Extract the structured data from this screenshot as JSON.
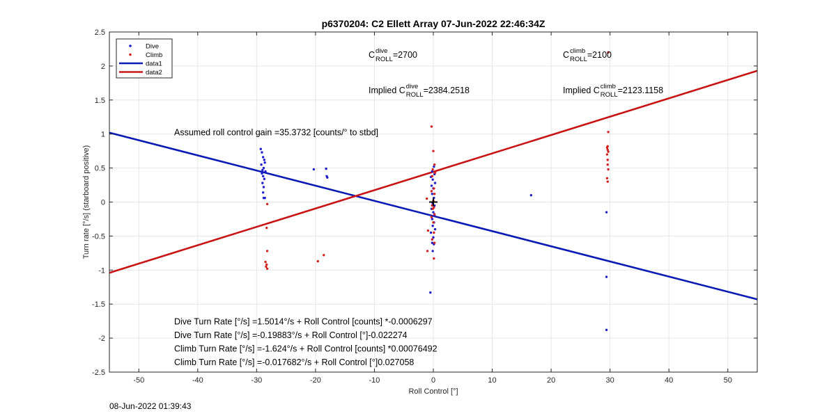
{
  "chart_data": {
    "type": "scatter",
    "title": "p6370204: C2 Ellett Array 07-Jun-2022 22:46:34Z",
    "xlabel": "Roll Control [°]",
    "ylabel": "Turn rate [°/s] (starboard positive)",
    "xlim": [
      -55,
      55
    ],
    "ylim": [
      -2.5,
      2.5
    ],
    "xticks": [
      -50,
      -40,
      -30,
      -20,
      -10,
      0,
      10,
      20,
      30,
      40,
      50
    ],
    "yticks": [
      -2.5,
      -2,
      -1.5,
      -1,
      -0.5,
      0,
      0.5,
      1,
      1.5,
      2,
      2.5
    ],
    "xtick_labels": [
      "-50",
      "-40",
      "-30",
      "-20",
      "-10",
      "0",
      "10",
      "20",
      "30",
      "40",
      "50"
    ],
    "ytick_labels": [
      "-2.5",
      "-2",
      "-1.5",
      "-1",
      "-0.5",
      "0",
      "0.5",
      "1",
      "1.5",
      "2",
      "2.5"
    ],
    "grid": true,
    "legend_position": "top-left",
    "colors": {
      "dive": "#1f1fcc",
      "climb": "#d41f1f",
      "line_dive": "#0a1ab4",
      "line_climb": "#c81414"
    },
    "series": [
      {
        "name": "Dive",
        "kind": "points",
        "points": [
          [
            -29.3,
            0.78
          ],
          [
            -29.1,
            0.73
          ],
          [
            -28.9,
            0.66
          ],
          [
            -28.7,
            0.62
          ],
          [
            -28.6,
            0.58
          ],
          [
            -29.2,
            0.55
          ],
          [
            -28.8,
            0.5
          ],
          [
            -29.0,
            0.47
          ],
          [
            -28.5,
            0.45
          ],
          [
            -29.1,
            0.42
          ],
          [
            -28.9,
            0.38
          ],
          [
            -28.7,
            0.34
          ],
          [
            -29.0,
            0.28
          ],
          [
            -28.8,
            0.22
          ],
          [
            -28.9,
            0.14
          ],
          [
            -28.8,
            0.06
          ],
          [
            -28.6,
            0.06
          ],
          [
            -20.3,
            0.48
          ],
          [
            -18.2,
            0.49
          ],
          [
            -18.1,
            0.38
          ],
          [
            -18.0,
            0.36
          ],
          [
            0.1,
            0.52
          ],
          [
            -0.2,
            0.45
          ],
          [
            0.2,
            0.41
          ],
          [
            -0.4,
            0.37
          ],
          [
            -0.1,
            0.33
          ],
          [
            0.3,
            0.28
          ],
          [
            -0.3,
            0.24
          ],
          [
            0.0,
            0.2
          ],
          [
            -0.2,
            0.12
          ],
          [
            0.1,
            0.06
          ],
          [
            -0.1,
            -0.02
          ],
          [
            0.2,
            -0.05
          ],
          [
            -0.3,
            -0.1
          ],
          [
            0.0,
            -0.15
          ],
          [
            0.2,
            -0.2
          ],
          [
            -0.2,
            -0.25
          ],
          [
            0.1,
            -0.3
          ],
          [
            -0.1,
            -0.35
          ],
          [
            0.3,
            -0.4
          ],
          [
            -0.4,
            -0.45
          ],
          [
            0.0,
            -0.52
          ],
          [
            -0.2,
            -0.6
          ],
          [
            0.1,
            -0.62
          ],
          [
            -0.1,
            -0.72
          ],
          [
            -0.5,
            -1.33
          ],
          [
            16.6,
            0.1
          ],
          [
            29.4,
            -0.15
          ],
          [
            29.4,
            -1.1
          ],
          [
            29.4,
            -1.88
          ]
        ]
      },
      {
        "name": "Climb",
        "kind": "points",
        "points": [
          [
            -28.2,
            -0.03
          ],
          [
            -28.3,
            -0.38
          ],
          [
            -28.2,
            -0.72
          ],
          [
            -28.5,
            -0.88
          ],
          [
            -28.3,
            -0.92
          ],
          [
            -28.4,
            -0.95
          ],
          [
            -28.2,
            -0.98
          ],
          [
            -19.6,
            -0.87
          ],
          [
            -18.6,
            -0.78
          ],
          [
            -0.3,
            1.11
          ],
          [
            0.0,
            0.75
          ],
          [
            0.2,
            0.55
          ],
          [
            -0.1,
            0.48
          ],
          [
            0.3,
            0.43
          ],
          [
            -0.2,
            0.38
          ],
          [
            0.1,
            0.2
          ],
          [
            -0.3,
            0.16
          ],
          [
            0.2,
            0.12
          ],
          [
            -1.1,
            0.05
          ],
          [
            0.0,
            0.02
          ],
          [
            -0.2,
            -0.05
          ],
          [
            0.1,
            -0.08
          ],
          [
            -0.1,
            -0.1
          ],
          [
            0.2,
            -0.18
          ],
          [
            -0.3,
            -0.22
          ],
          [
            0.0,
            -0.3
          ],
          [
            -0.9,
            -0.42
          ],
          [
            0.1,
            -0.45
          ],
          [
            -0.2,
            -0.55
          ],
          [
            0.2,
            -0.6
          ],
          [
            -1.0,
            -0.72
          ],
          [
            0.1,
            -0.83
          ],
          [
            29.7,
            2.2
          ],
          [
            29.7,
            1.03
          ],
          [
            29.6,
            0.82
          ],
          [
            29.5,
            0.8
          ],
          [
            29.6,
            0.77
          ],
          [
            29.7,
            0.74
          ],
          [
            29.5,
            0.7
          ],
          [
            29.6,
            0.62
          ],
          [
            29.6,
            0.55
          ],
          [
            29.7,
            0.48
          ],
          [
            29.5,
            0.35
          ],
          [
            29.6,
            0.3
          ]
        ]
      },
      {
        "name": "data1",
        "kind": "line",
        "points": [
          [
            -55,
            1.02
          ],
          [
            55,
            -1.43
          ]
        ]
      },
      {
        "name": "data2",
        "kind": "line",
        "points": [
          [
            -55,
            -1.04
          ],
          [
            55,
            1.93
          ]
        ]
      }
    ],
    "marker": {
      "symbol": "+",
      "x": 0,
      "y": 0
    },
    "annotations": [
      {
        "pre": "C",
        "sup": "dive",
        "sub": "ROLL",
        "post": " =2700",
        "x": -11,
        "y": 2.12
      },
      {
        "pre": "C",
        "sup": "climb",
        "sub": "ROLL",
        "post": " =2100",
        "x": 22,
        "y": 2.12
      },
      {
        "pre": "Implied C",
        "sup": "dive",
        "sub": "ROLL",
        "post": " =2384.2518",
        "x": -11,
        "y": 1.6
      },
      {
        "pre": "Implied C",
        "sup": "climb",
        "sub": "ROLL",
        "post": " =2123.1158",
        "x": 22,
        "y": 1.6
      },
      {
        "pre": "Assumed roll control gain =35.3732 [counts/° to stbd]",
        "x": -44,
        "y": 0.98
      },
      {
        "pre": "Dive Turn Rate [°/s] =1.5014°/s + Roll Control [counts] *-0.0006297",
        "x": -44,
        "y": -1.8
      },
      {
        "pre": "Dive Turn Rate [°/s] =-0.19883°/s + Roll Control [°]-0.022274",
        "x": -44,
        "y": -2.0
      },
      {
        "pre": "Climb Turn Rate [°/s] =-1.624°/s + Roll Control [counts] *0.00076492",
        "x": -44,
        "y": -2.2
      },
      {
        "pre": "Climb Turn Rate [°/s] =-0.017682°/s + Roll Control [°]0.027058",
        "x": -44,
        "y": -2.4
      }
    ]
  },
  "footer": {
    "timestamp": "08-Jun-2022 01:39:43"
  }
}
